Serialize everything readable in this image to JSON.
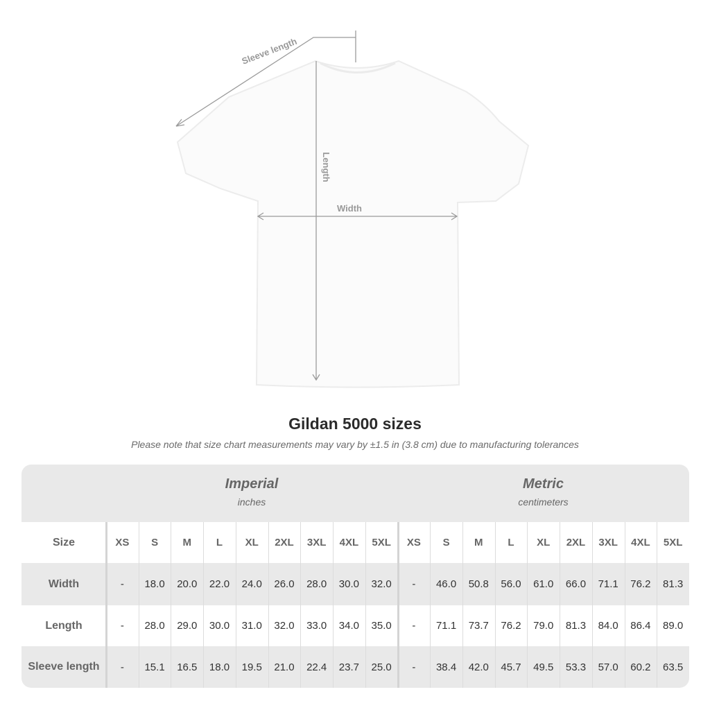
{
  "diagram": {
    "labels": {
      "sleeve": "Sleeve length",
      "length": "Length",
      "width": "Width"
    },
    "colors": {
      "shirt": "#fbfbfb",
      "measure_lines": "#9a9a9a"
    }
  },
  "title": "Gildan 5000 sizes",
  "note": "Please note that size chart measurements may vary by ±1.5 in (3.8 cm) due to manufacturing tolerances",
  "table": {
    "imperial": {
      "name": "Imperial",
      "unit": "inches"
    },
    "metric": {
      "name": "Metric",
      "unit": "centimeters"
    },
    "size_label": "Size",
    "sizes": [
      "XS",
      "S",
      "M",
      "L",
      "XL",
      "2XL",
      "3XL",
      "4XL",
      "5XL"
    ],
    "rows": [
      {
        "label": "Width",
        "imperial": [
          "-",
          "18.0",
          "20.0",
          "22.0",
          "24.0",
          "26.0",
          "28.0",
          "30.0",
          "32.0"
        ],
        "metric": [
          "-",
          "46.0",
          "50.8",
          "56.0",
          "61.0",
          "66.0",
          "71.1",
          "76.2",
          "81.3"
        ]
      },
      {
        "label": "Length",
        "imperial": [
          "-",
          "28.0",
          "29.0",
          "30.0",
          "31.0",
          "32.0",
          "33.0",
          "34.0",
          "35.0"
        ],
        "metric": [
          "-",
          "71.1",
          "73.7",
          "76.2",
          "79.0",
          "81.3",
          "84.0",
          "86.4",
          "89.0"
        ]
      },
      {
        "label": "Sleeve length",
        "imperial": [
          "-",
          "15.1",
          "16.5",
          "18.0",
          "19.5",
          "21.0",
          "22.4",
          "23.7",
          "25.0"
        ],
        "metric": [
          "-",
          "38.4",
          "42.0",
          "45.7",
          "49.5",
          "53.3",
          "57.0",
          "60.2",
          "63.5"
        ]
      }
    ],
    "colors": {
      "band": "#e9e9e9",
      "header_text": "#666666"
    }
  }
}
